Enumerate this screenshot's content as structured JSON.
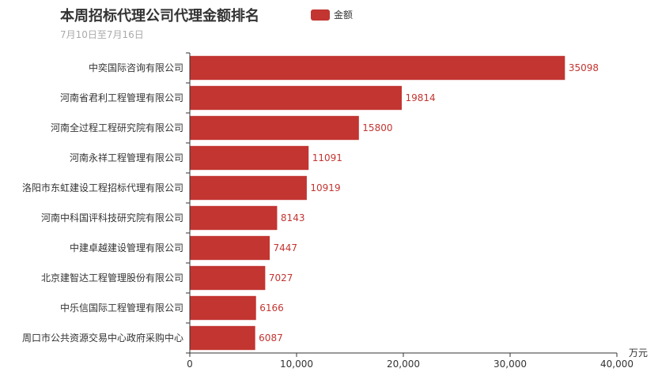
{
  "chart_data": {
    "type": "bar",
    "orientation": "horizontal",
    "title": "本周招标代理公司代理金额排名",
    "subtitle": "7月10日至7月16日",
    "xlabel": "万元",
    "ylabel": "",
    "xlim": [
      0,
      40000
    ],
    "x_ticks": [
      0,
      10000,
      20000,
      30000,
      40000
    ],
    "x_tick_labels": [
      "0",
      "10,000",
      "20,000",
      "30,000",
      "40,000"
    ],
    "grid": false,
    "legend_position": "top",
    "bar_color": "#c23531",
    "categories": [
      "中奕国际咨询有限公司",
      "河南省君利工程管理有限公司",
      "河南全过程工程研究院有限公司",
      "河南永祥工程管理有限公司",
      "洛阳市东虹建设工程招标代理有限公司",
      "河南中科国评科技研究院有限公司",
      "中建卓越建设管理有限公司",
      "北京建智达工程管理股份有限公司",
      "中乐信国际工程管理有限公司",
      "周口市公共资源交易中心政府采购中心"
    ],
    "series": [
      {
        "name": "金额",
        "values": [
          35098,
          19814,
          15800,
          11091,
          10919,
          8143,
          7447,
          7027,
          6166,
          6087
        ]
      }
    ]
  }
}
